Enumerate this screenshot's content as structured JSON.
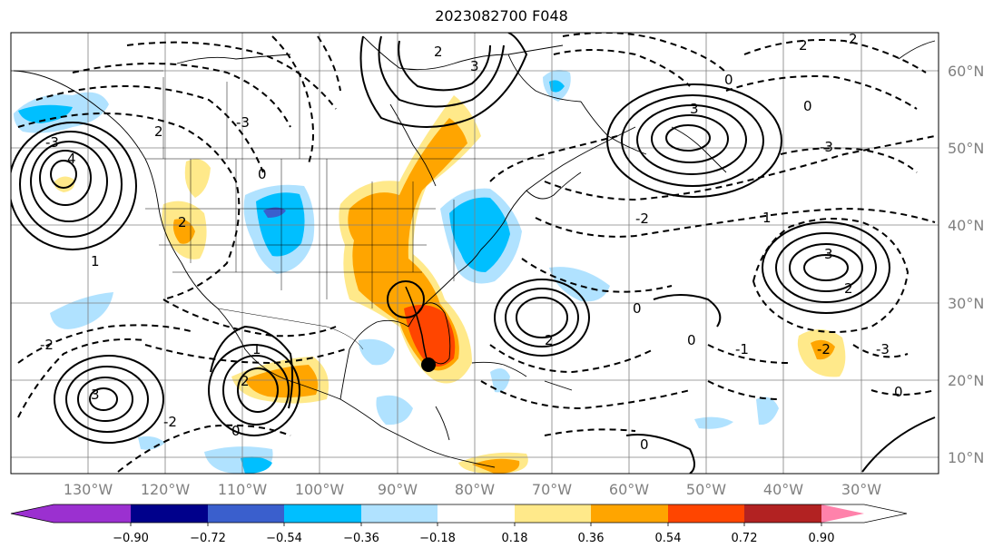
{
  "title": "2023082700 F048",
  "map": {
    "lat_labels": [
      "60°N",
      "50°N",
      "40°N",
      "30°N",
      "20°N",
      "10°N"
    ],
    "lon_labels": [
      "130°W",
      "120°W",
      "110°W",
      "100°W",
      "90°W",
      "80°W",
      "70°W",
      "60°W",
      "50°W",
      "40°W",
      "30°W"
    ],
    "contour_labels": [
      "0",
      "1",
      "2",
      "3",
      "4",
      "-2",
      "-3",
      "-1"
    ]
  },
  "colorbar": {
    "ticks": [
      "−0.90",
      "−0.72",
      "−0.54",
      "−0.36",
      "−0.18",
      "0.18",
      "0.36",
      "0.54",
      "0.72",
      "0.90"
    ],
    "colors": [
      "#9b30d0",
      "#00008b",
      "#3a5fcd",
      "#00bfff",
      "#b0e2ff",
      "#ffffff",
      "#ffe98a",
      "#ffa500",
      "#ff4500",
      "#b22222",
      "#ff82ab"
    ]
  },
  "colors": {
    "frame": "#000000",
    "grid": "#808080",
    "coast": "#000000"
  }
}
